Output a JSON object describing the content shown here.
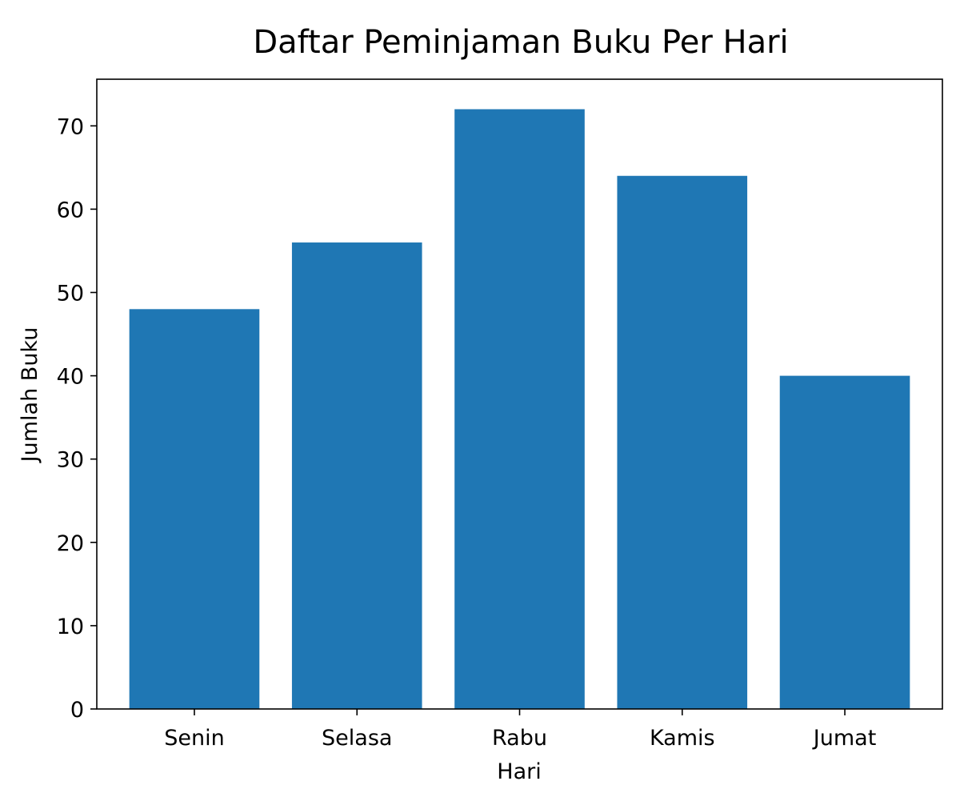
{
  "chart_data": {
    "type": "bar",
    "title": "Daftar Peminjaman Buku Per Hari",
    "xlabel": "Hari",
    "ylabel": "Jumlah Buku",
    "categories": [
      "Senin",
      "Selasa",
      "Rabu",
      "Kamis",
      "Jumat"
    ],
    "values": [
      48,
      56,
      72,
      64,
      40
    ],
    "ylim": [
      0,
      75.6
    ],
    "yticks": [
      0,
      10,
      20,
      30,
      40,
      50,
      60,
      70
    ],
    "grid": false,
    "bar_color": "#1f77b4"
  }
}
